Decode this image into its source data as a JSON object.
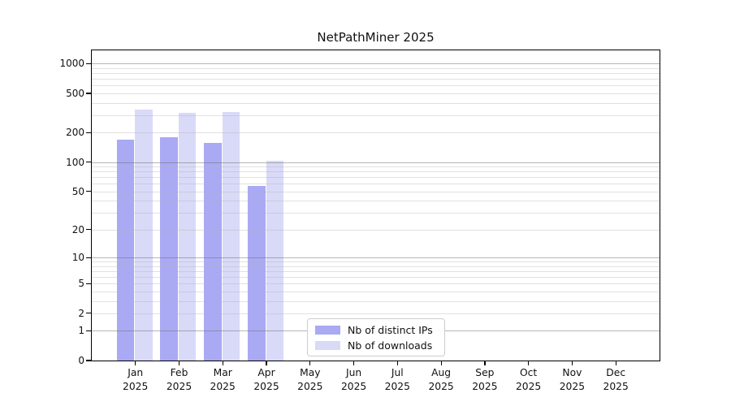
{
  "title": "NetPathMiner 2025",
  "chart_data": {
    "type": "bar",
    "months": [
      "Jan",
      "Feb",
      "Mar",
      "Apr",
      "May",
      "Jun",
      "Jul",
      "Aug",
      "Sep",
      "Oct",
      "Nov",
      "Dec"
    ],
    "year": "2025",
    "series": [
      {
        "name": "Nb of distinct IPs",
        "color": "#a9a9f4",
        "values": [
          170,
          178,
          157,
          57,
          0,
          0,
          0,
          0,
          0,
          0,
          0,
          0
        ]
      },
      {
        "name": "Nb of downloads",
        "color": "#d9d9f8",
        "values": [
          345,
          317,
          325,
          104,
          0,
          0,
          0,
          0,
          0,
          0,
          0,
          0
        ]
      }
    ],
    "y_ticks": [
      0,
      1,
      2,
      5,
      10,
      20,
      50,
      100,
      200,
      500,
      1000
    ],
    "y_scale": "log10(value+1)",
    "ylim": [
      0,
      1370
    ],
    "grid": true,
    "legend_position": "lower-center-inside"
  }
}
